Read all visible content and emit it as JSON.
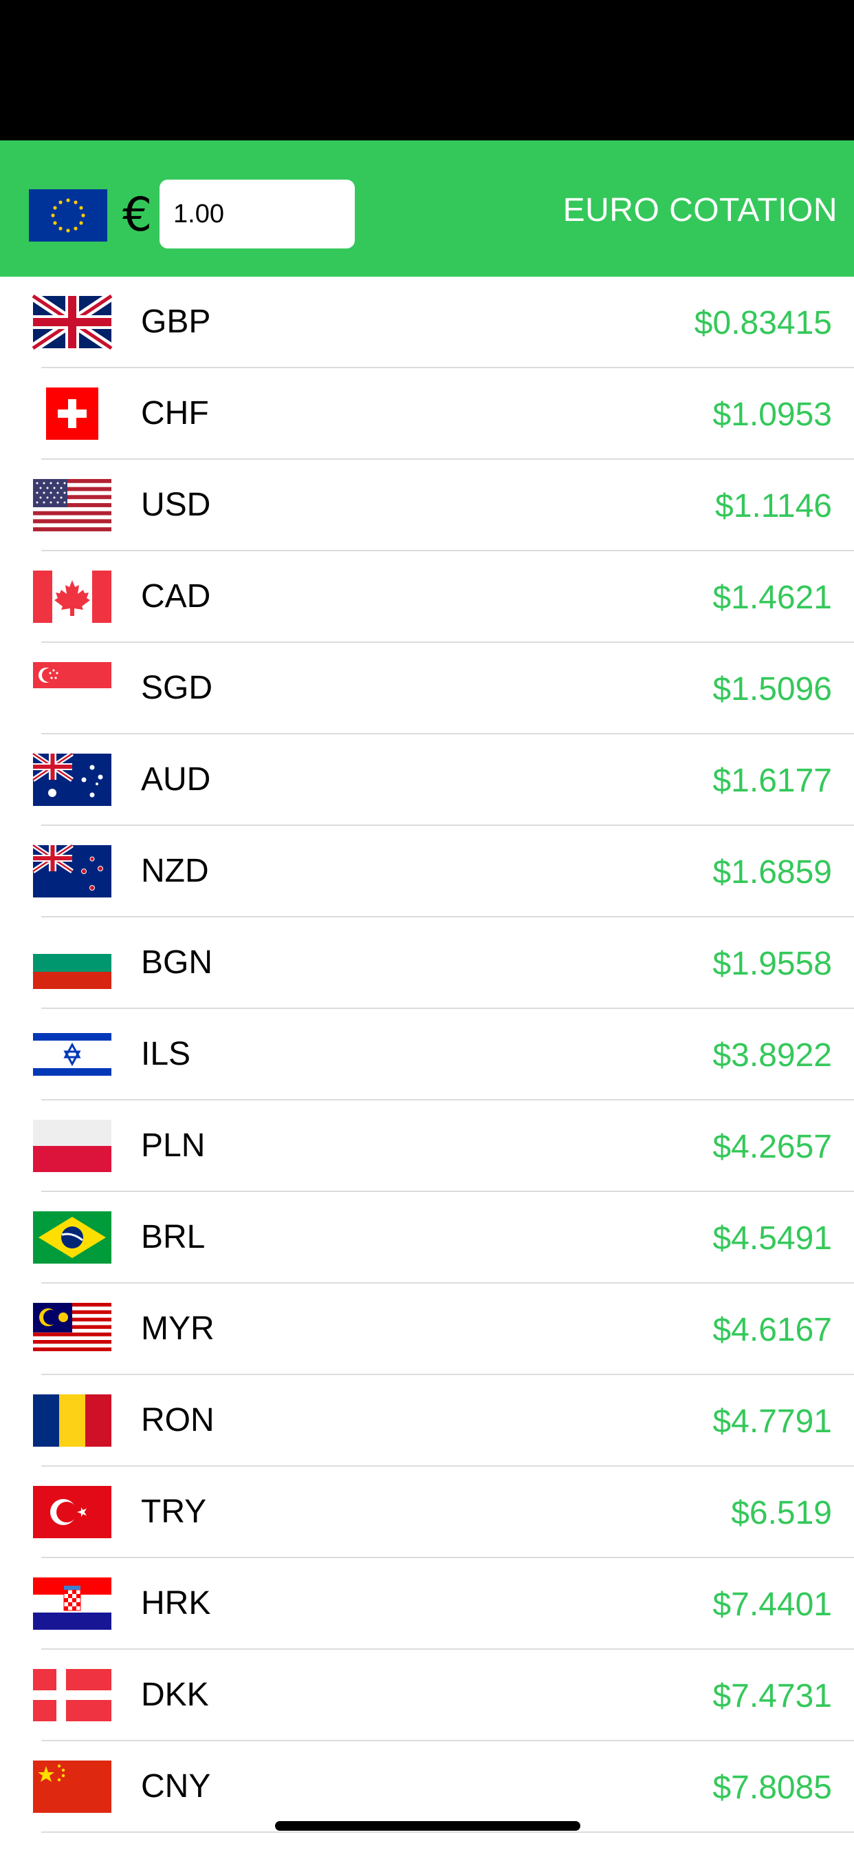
{
  "header": {
    "currency_symbol": "€",
    "amount_value": "1.00",
    "title": "EURO COTATION",
    "accent_color": "#34c85a",
    "base_flag_icon": "eu-flag-icon"
  },
  "rates": [
    {
      "code": "GBP",
      "rate": "$0.83415",
      "flag": "gb"
    },
    {
      "code": "CHF",
      "rate": "$1.0953",
      "flag": "ch"
    },
    {
      "code": "USD",
      "rate": "$1.1146",
      "flag": "us"
    },
    {
      "code": "CAD",
      "rate": "$1.4621",
      "flag": "ca"
    },
    {
      "code": "SGD",
      "rate": "$1.5096",
      "flag": "sg"
    },
    {
      "code": "AUD",
      "rate": "$1.6177",
      "flag": "au"
    },
    {
      "code": "NZD",
      "rate": "$1.6859",
      "flag": "nz"
    },
    {
      "code": "BGN",
      "rate": "$1.9558",
      "flag": "bg"
    },
    {
      "code": "ILS",
      "rate": "$3.8922",
      "flag": "il"
    },
    {
      "code": "PLN",
      "rate": "$4.2657",
      "flag": "pl"
    },
    {
      "code": "BRL",
      "rate": "$4.5491",
      "flag": "br"
    },
    {
      "code": "MYR",
      "rate": "$4.6167",
      "flag": "my"
    },
    {
      "code": "RON",
      "rate": "$4.7791",
      "flag": "ro"
    },
    {
      "code": "TRY",
      "rate": "$6.519",
      "flag": "tr"
    },
    {
      "code": "HRK",
      "rate": "$7.4401",
      "flag": "hr"
    },
    {
      "code": "DKK",
      "rate": "$7.4731",
      "flag": "dk"
    },
    {
      "code": "CNY",
      "rate": "$7.8085",
      "flag": "cn"
    }
  ]
}
